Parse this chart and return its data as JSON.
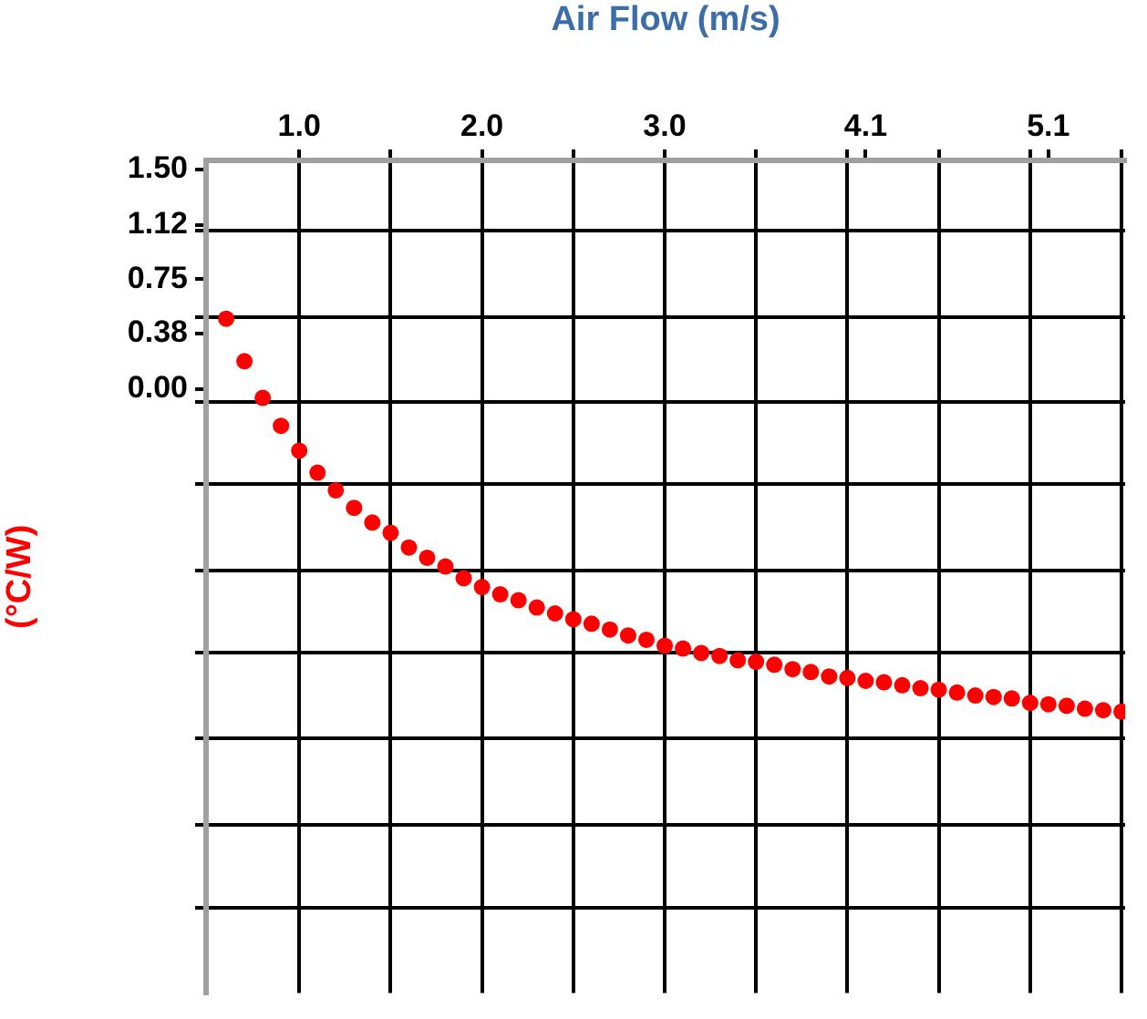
{
  "chart_data": {
    "type": "scatter",
    "xlabel": "Air Flow (m/s)",
    "ylabel": "(°C/W)",
    "x": [
      0.6,
      0.7,
      0.8,
      0.9,
      1.0,
      1.1,
      1.2,
      1.3,
      1.4,
      1.5,
      1.6,
      1.7,
      1.8,
      1.9,
      2.0,
      2.1,
      2.2,
      2.3,
      2.4,
      2.5,
      2.6,
      2.7,
      2.8,
      2.9,
      3.0,
      3.1,
      3.2,
      3.3,
      3.4,
      3.5,
      3.6,
      3.7,
      3.8,
      3.9,
      4.0,
      4.1,
      4.2,
      4.3,
      4.4,
      4.5,
      4.6,
      4.7,
      4.8,
      4.9,
      5.0,
      5.1,
      5.2,
      5.3,
      5.4,
      5.5
    ],
    "series": [
      {
        "color": "#ff0000",
        "values": [
          0.48,
          0.19,
          -0.06,
          -0.25,
          -0.42,
          -0.57,
          -0.69,
          -0.81,
          -0.91,
          -0.98,
          -1.08,
          -1.15,
          -1.21,
          -1.29,
          -1.35,
          -1.4,
          -1.44,
          -1.49,
          -1.53,
          -1.57,
          -1.6,
          -1.64,
          -1.68,
          -1.71,
          -1.75,
          -1.77,
          -1.8,
          -1.82,
          -1.85,
          -1.86,
          -1.88,
          -1.91,
          -1.93,
          -1.96,
          -1.97,
          -1.99,
          -2.0,
          -2.02,
          -2.04,
          -2.05,
          -2.07,
          -2.09,
          -2.1,
          -2.11,
          -2.14,
          -2.15,
          -2.16,
          -2.18,
          -2.19,
          -2.2
        ]
      }
    ],
    "xlim": [
      0.49,
      5.52
    ],
    "xticks": [
      {
        "value": 1.0,
        "label": "1.0"
      },
      {
        "value": 1.5,
        "label": null
      },
      {
        "value": 2.0,
        "label": "2.0"
      },
      {
        "value": 2.5,
        "label": null
      },
      {
        "value": 3.0,
        "label": "3.0"
      },
      {
        "value": 3.5,
        "label": null
      },
      {
        "value": 4.0,
        "label": null
      },
      {
        "value": 4.1,
        "label": "4.1"
      },
      {
        "value": 4.5,
        "label": null
      },
      {
        "value": 5.0,
        "label": null
      },
      {
        "value": 5.1,
        "label": "5.1"
      },
      {
        "value": 5.5,
        "label": null
      }
    ],
    "ylim": [
      -4.12,
      1.56
    ],
    "yticks": [
      {
        "value": 1.5,
        "label": "1.50"
      },
      1.12,
      0.75,
      0.38,
      {
        "value": 0,
        "label": "0.00"
      },
      {
        "value": 1.08,
        "label": null
      },
      {
        "value": 0.49,
        "label": null
      },
      {
        "value": -0.09,
        "label": null
      },
      {
        "value": -0.65,
        "label": null
      },
      {
        "value": -1.24,
        "label": null
      },
      {
        "value": -1.8,
        "label": null
      },
      {
        "value": -2.38,
        "label": null
      },
      {
        "value": -2.97,
        "label": null
      },
      {
        "value": -3.54,
        "label": null
      }
    ],
    "grid": true,
    "marker": "circle",
    "legend": false
  }
}
